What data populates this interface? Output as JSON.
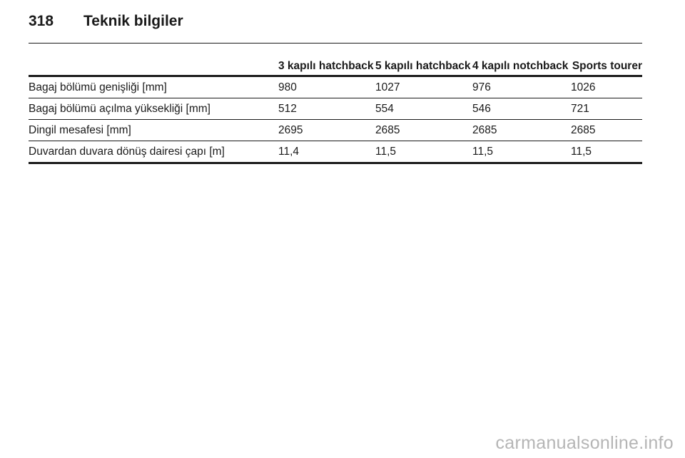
{
  "header": {
    "page_number": "318",
    "chapter_title": "Teknik bilgiler"
  },
  "table": {
    "columns": [
      "",
      "3 kapılı hatchback",
      "5 kapılı hatchback",
      "4 kapılı notchback",
      "Sports tourer"
    ],
    "rows": [
      {
        "label": "Bagaj bölümü genişliği [mm]",
        "values": [
          "980",
          "1027",
          "976",
          "1026"
        ]
      },
      {
        "label": "Bagaj bölümü açılma yüksekliği [mm]",
        "values": [
          "512",
          "554",
          "546",
          "721"
        ]
      },
      {
        "label": "Dingil mesafesi [mm]",
        "values": [
          "2695",
          "2685",
          "2685",
          "2685"
        ]
      },
      {
        "label": "Duvardan duvara dönüş dairesi çapı [m]",
        "values": [
          "11,4",
          "11,5",
          "11,5",
          "11,5"
        ]
      }
    ]
  },
  "watermark": "carmanualsonline.info"
}
